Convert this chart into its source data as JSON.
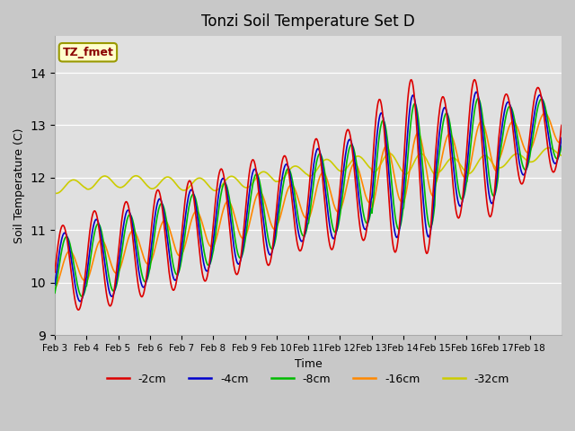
{
  "title": "Tonzi Soil Temperature Set D",
  "xlabel": "Time",
  "ylabel": "Soil Temperature (C)",
  "ylim": [
    9.0,
    14.7
  ],
  "label_box_text": "TZ_fmet",
  "label_box_color": "#ffffcc",
  "label_box_text_color": "#8b0000",
  "fig_bg_color": "#c8c8c8",
  "plot_bg_color": "#e0e0e0",
  "colors": {
    "-2cm": "#dd0000",
    "-4cm": "#0000cc",
    "-8cm": "#00bb00",
    "-16cm": "#ff8800",
    "-32cm": "#cccc00"
  },
  "xtick_labels": [
    "Feb 3",
    "Feb 4",
    "Feb 5",
    "Feb 6",
    "Feb 7",
    "Feb 8",
    "Feb 9",
    "Feb 10",
    "Feb 11",
    "Feb 12",
    "Feb 13",
    "Feb 14",
    "Feb 15",
    "Feb 16",
    "Feb 17",
    "Feb 18"
  ],
  "n_days": 16,
  "pts_per_day": 48
}
